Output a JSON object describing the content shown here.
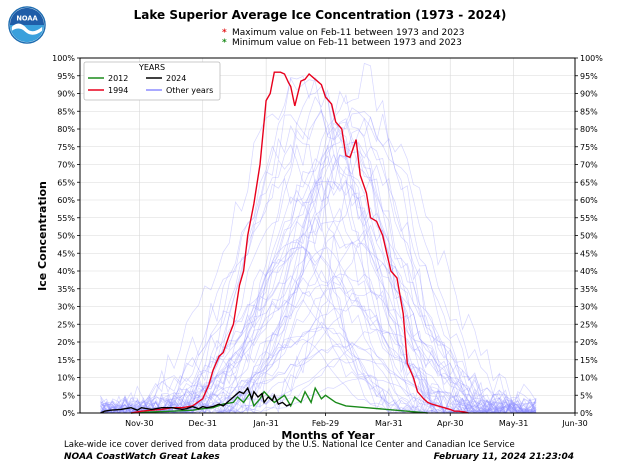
{
  "header": {
    "logo_text": "NOAA",
    "title": "Lake Superior Average Ice Concentration (1973 - 2024)",
    "max_note": "Maximum value on Feb-11 between 1973 and 2023",
    "min_note": "Minimum  value on Feb-11 between 1973 and 2023",
    "max_marker": "*",
    "min_marker": "*"
  },
  "footer": {
    "note": "Lake-wide ice cover derived from data produced by the U.S. National Ice Center and Canadian Ice Service",
    "left": "NOAA CoastWatch Great Lakes",
    "right": "February 11, 2024 21:23:04"
  },
  "colors": {
    "max_marker": "#e41a1c",
    "min_marker": "#1a8a1a",
    "series_1994": "#e8001c",
    "series_2012": "#1a8a1a",
    "series_2024": "#000000",
    "other_years": "#8c8cff"
  },
  "chart_data": {
    "type": "line",
    "title": "Lake Superior Average Ice Concentration (1973 - 2024)",
    "xlabel": "Months of Year",
    "ylabel": "Ice Concentration",
    "x_unit": "day offset from Nov-01",
    "xlim": [
      0,
      242
    ],
    "ylim": [
      0,
      100
    ],
    "xticks": [
      {
        "x": 29,
        "label": "Nov-30"
      },
      {
        "x": 60,
        "label": "Dec-31"
      },
      {
        "x": 91,
        "label": "Jan-31"
      },
      {
        "x": 120,
        "label": "Feb-29"
      },
      {
        "x": 151,
        "label": "Mar-31"
      },
      {
        "x": 181,
        "label": "Apr-30"
      },
      {
        "x": 212,
        "label": "May-31"
      },
      {
        "x": 242,
        "label": "Jun-30"
      }
    ],
    "yticks": [
      "0%",
      "5%",
      "10%",
      "15%",
      "20%",
      "25%",
      "30%",
      "35%",
      "40%",
      "45%",
      "50%",
      "55%",
      "60%",
      "65%",
      "70%",
      "75%",
      "80%",
      "85%",
      "90%",
      "95%",
      "100%"
    ],
    "grid": true,
    "legend": {
      "title": "YEARS",
      "placement": "top-left"
    },
    "series": [
      {
        "name": "2012",
        "color": "#1a8a1a",
        "x": [
          25,
          35,
          45,
          55,
          60,
          65,
          70,
          75,
          77,
          80,
          83,
          85,
          88,
          90,
          95,
          100,
          103,
          105,
          108,
          110,
          113,
          115,
          118,
          120,
          125,
          130,
          140,
          150,
          160,
          170
        ],
        "y": [
          0,
          0.3,
          0.5,
          0.8,
          1.2,
          1.5,
          2.5,
          3,
          4.5,
          3,
          5.5,
          2,
          4,
          6,
          3,
          5,
          2,
          4.5,
          3,
          6,
          3,
          7,
          4,
          5,
          3,
          2,
          1.5,
          1,
          0.5,
          0
        ]
      },
      {
        "name": "1994",
        "color": "#e8001c",
        "x": [
          25,
          30,
          35,
          40,
          45,
          50,
          55,
          60,
          63,
          65,
          68,
          70,
          73,
          75,
          78,
          80,
          82,
          85,
          88,
          90,
          91,
          93,
          95,
          98,
          100,
          102,
          103,
          105,
          108,
          110,
          112,
          115,
          118,
          120,
          123,
          125,
          128,
          130,
          132,
          135,
          137,
          140,
          142,
          145,
          148,
          150,
          152,
          155,
          158,
          160,
          163,
          165,
          168,
          170,
          172,
          175,
          178,
          181,
          183,
          185,
          188,
          190
        ],
        "y": [
          0,
          0.5,
          0.8,
          1,
          1.5,
          1.5,
          2,
          4,
          8,
          12,
          16,
          17,
          22,
          25,
          36,
          40,
          50,
          59,
          70,
          82,
          88,
          90,
          96,
          96,
          95.5,
          93,
          92,
          86.5,
          93.5,
          94,
          95.5,
          94,
          92.5,
          89,
          87,
          82,
          80,
          72.5,
          72,
          77,
          67,
          62,
          55,
          54,
          50,
          45,
          40,
          38,
          28,
          14,
          10,
          6,
          4,
          3,
          2.5,
          2,
          1.5,
          1,
          0.5,
          0.5,
          0.3,
          0
        ]
      },
      {
        "name": "2024",
        "color": "#000000",
        "x": [
          10,
          12,
          15,
          20,
          25,
          28,
          30,
          35,
          40,
          45,
          50,
          52,
          55,
          58,
          60,
          62,
          65,
          68,
          70,
          72,
          75,
          78,
          80,
          82,
          84,
          85,
          87,
          89,
          90,
          92,
          94,
          95,
          97,
          99,
          101,
          103
        ],
        "y": [
          0,
          0.5,
          0.8,
          1,
          1.5,
          0.8,
          1.5,
          1,
          1.5,
          1.5,
          1,
          1.2,
          1.8,
          1.2,
          1.8,
          1.5,
          1.8,
          2.5,
          2,
          3,
          4.5,
          6,
          5.5,
          7,
          4,
          6,
          4.5,
          5.5,
          3,
          4.5,
          3.5,
          5,
          2.5,
          3,
          2,
          2.5
        ]
      }
    ],
    "other_years_label": "Other years",
    "other_years_description": "Faint lavender lines for each remaining year 1973-2023, mostly peaking between late January and March, many exceeding 90% near Feb-29"
  }
}
